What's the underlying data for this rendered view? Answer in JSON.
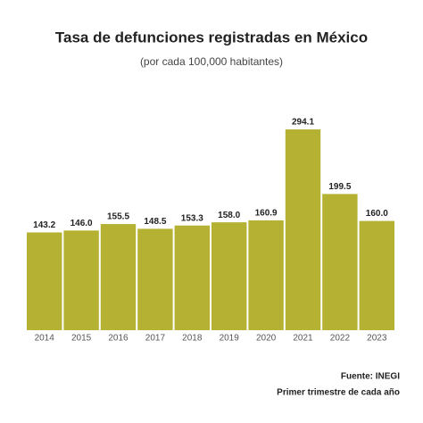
{
  "chart_data": {
    "type": "bar",
    "title": "Tasa de defunciones registradas en México",
    "subtitle": "(por cada 100,000 habitantes)",
    "categories": [
      "2014",
      "2015",
      "2016",
      "2017",
      "2018",
      "2019",
      "2020",
      "2021",
      "2022",
      "2023"
    ],
    "values": [
      143.2,
      146.0,
      155.5,
      148.5,
      153.3,
      158.0,
      160.9,
      294.1,
      199.5,
      160.0
    ],
    "value_labels": [
      "143.2",
      "146.0",
      "155.5",
      "148.5",
      "153.3",
      "158.0",
      "160.9",
      "294.1",
      "199.5",
      "160.0"
    ],
    "color": "#b5b233",
    "source": "Fuente: INEGI",
    "note": "Primer trimestre de cada año"
  }
}
